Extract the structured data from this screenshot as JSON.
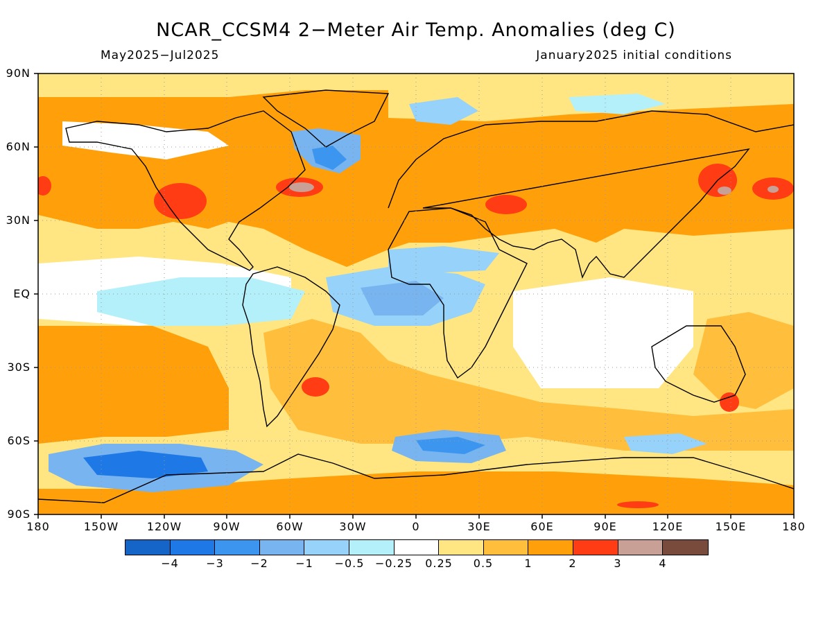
{
  "header": {
    "title": "NCAR_CCSM4 2-Meter Air Temp. Anomalies (deg C)",
    "period": "May2025-Jul2025",
    "init": "January2025 initial conditions"
  },
  "axes": {
    "lat_labels": [
      "90N",
      "60N",
      "30N",
      "EQ",
      "30S",
      "60S",
      "90S"
    ],
    "lon_labels": [
      "180",
      "150W",
      "120W",
      "90W",
      "60W",
      "30W",
      "0",
      "30E",
      "60E",
      "90E",
      "120E",
      "150E",
      "180"
    ]
  },
  "colorbar": {
    "colors": [
      "#1565c8",
      "#1e78e6",
      "#3c96f0",
      "#78b4f0",
      "#96d2fa",
      "#b4f0fa",
      "#ffffff",
      "#ffe682",
      "#ffbe3c",
      "#ffa00a",
      "#ff3c14",
      "#c8a096",
      "#784b3c"
    ],
    "labels": [
      "-4",
      "-3",
      "-2",
      "-1",
      "-0.5",
      "-0.25",
      "0.25",
      "0.5",
      "1",
      "2",
      "3",
      "4"
    ]
  },
  "map_colors": {
    "orange": "#ffa00a",
    "light_orange": "#ffbe3c",
    "yellow": "#ffe682",
    "red": "#ff3c14",
    "rose": "#c8a096",
    "pale_cyan": "#b4f0fa",
    "light_blue": "#96d2fa",
    "blue": "#78b4f0",
    "mid_blue": "#3c96f0",
    "dark_blue": "#1e78e6",
    "deep_blue": "#1565c8"
  }
}
